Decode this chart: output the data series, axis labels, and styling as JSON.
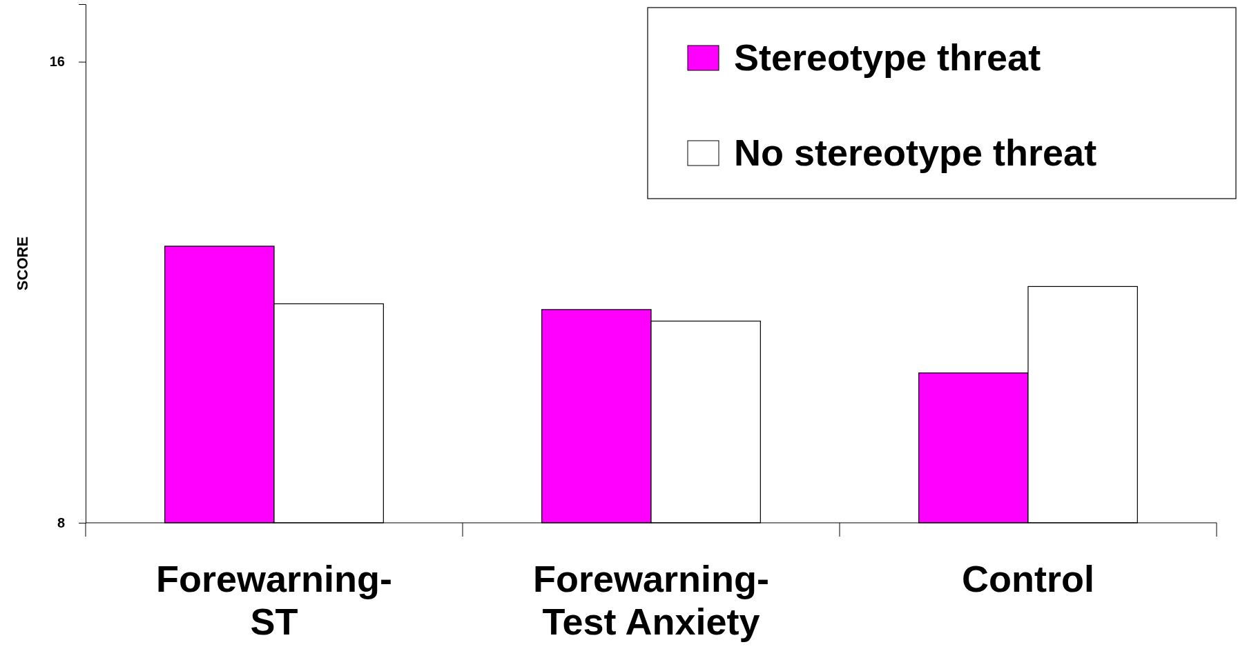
{
  "chart_data": {
    "type": "bar",
    "ylabel": "SCORE",
    "categories": [
      "Forewarning-ST",
      "Forewarning-Test Anxiety",
      "Control"
    ],
    "series": [
      {
        "name": "Stereotype threat",
        "color": "#ff00ff",
        "values": [
          12.8,
          11.7,
          10.6
        ]
      },
      {
        "name": "No stereotype threat",
        "color": "#ffffff",
        "values": [
          11.8,
          11.5,
          12.1
        ]
      }
    ],
    "ylim": [
      8,
      17
    ],
    "yticks": [
      8,
      16
    ],
    "grid": false,
    "legend": "top right"
  }
}
